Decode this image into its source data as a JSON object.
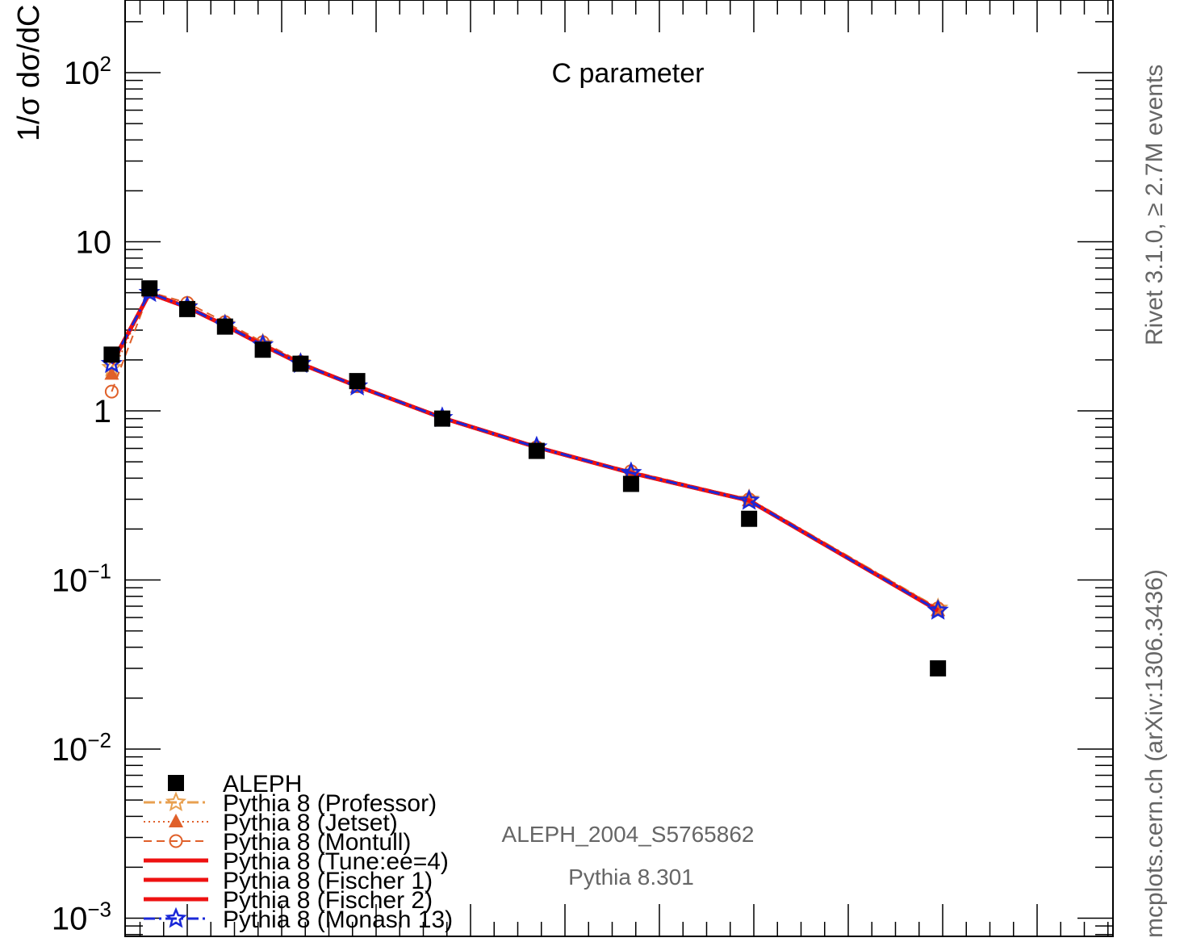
{
  "chart_data": {
    "type": "line",
    "title": "C parameter",
    "ylabel": "1/σ  dσ/dC",
    "yscale": "log",
    "ylim": [
      0.001,
      200
    ],
    "y_tick_labels": [
      {
        "value": 0.001,
        "base": "10",
        "exp": "−3"
      },
      {
        "value": 0.01,
        "base": "10",
        "exp": "−2"
      },
      {
        "value": 0.1,
        "base": "10",
        "exp": "−1"
      },
      {
        "value": 1,
        "base": "1",
        "exp": ""
      },
      {
        "value": 10,
        "base": "10",
        "exp": ""
      },
      {
        "value": 100,
        "base": "10",
        "exp": "2"
      }
    ],
    "x": [
      0.02,
      0.06,
      0.1,
      0.14,
      0.18,
      0.22,
      0.28,
      0.37,
      0.47,
      0.57,
      0.695,
      0.895
    ],
    "xlim": [
      0,
      1.03
    ],
    "series": [
      {
        "name": "ALEPH",
        "style": "data",
        "color": "#000000",
        "values": [
          2.15,
          5.3,
          4.0,
          3.15,
          2.3,
          1.9,
          1.5,
          0.9,
          0.58,
          0.37,
          0.23,
          0.03
        ]
      },
      {
        "name": "Pythia 8 (Professor)",
        "style": "dashdot",
        "marker": "star-open",
        "color": "#e8a050",
        "values": [
          1.8,
          5.0,
          4.15,
          3.25,
          2.5,
          1.92,
          1.4,
          0.91,
          0.61,
          0.43,
          0.3,
          0.068
        ]
      },
      {
        "name": "Pythia 8 (Jetset)",
        "style": "dotted",
        "marker": "triangle",
        "color": "#e0602a",
        "values": [
          1.65,
          5.05,
          4.2,
          3.25,
          2.5,
          1.9,
          1.38,
          0.91,
          0.61,
          0.43,
          0.295,
          0.066
        ]
      },
      {
        "name": "Pythia 8 (Montull)",
        "style": "dashed",
        "marker": "circle-open",
        "color": "#e0602a",
        "values": [
          1.3,
          5.05,
          4.35,
          3.35,
          2.55,
          1.95,
          1.4,
          0.91,
          0.61,
          0.44,
          0.3,
          0.068
        ]
      },
      {
        "name": "Pythia 8 (Tune:ee=4)",
        "style": "solid",
        "marker": "none",
        "color": "#ee1111",
        "values": [
          1.9,
          4.95,
          4.1,
          3.2,
          2.45,
          1.9,
          1.4,
          0.91,
          0.61,
          0.43,
          0.295,
          0.066
        ]
      },
      {
        "name": "Pythia 8 (Fischer 1)",
        "style": "solid",
        "marker": "none",
        "color": "#ee1111",
        "values": [
          1.9,
          4.95,
          4.1,
          3.2,
          2.45,
          1.9,
          1.4,
          0.91,
          0.61,
          0.43,
          0.295,
          0.066
        ]
      },
      {
        "name": "Pythia 8 (Fischer 2)",
        "style": "solid",
        "marker": "none",
        "color": "#ee1111",
        "values": [
          1.9,
          4.95,
          4.1,
          3.2,
          2.45,
          1.9,
          1.4,
          0.91,
          0.61,
          0.43,
          0.295,
          0.066
        ]
      },
      {
        "name": "Pythia 8 (Monash 13)",
        "style": "dashdot",
        "marker": "star",
        "color": "#1a28d8",
        "values": [
          1.9,
          5.0,
          4.1,
          3.2,
          2.45,
          1.9,
          1.4,
          0.91,
          0.61,
          0.43,
          0.295,
          0.066
        ]
      }
    ],
    "legend": "bottom-left",
    "annotations": [
      "ALEPH_2004_S5765862",
      "Pythia 8.301"
    ],
    "side_labels": {
      "rivet": "Rivet 3.1.0, ≥ 2.7M events",
      "mcplots": "mcplots.cern.ch (arXiv:1306.3436)"
    }
  }
}
